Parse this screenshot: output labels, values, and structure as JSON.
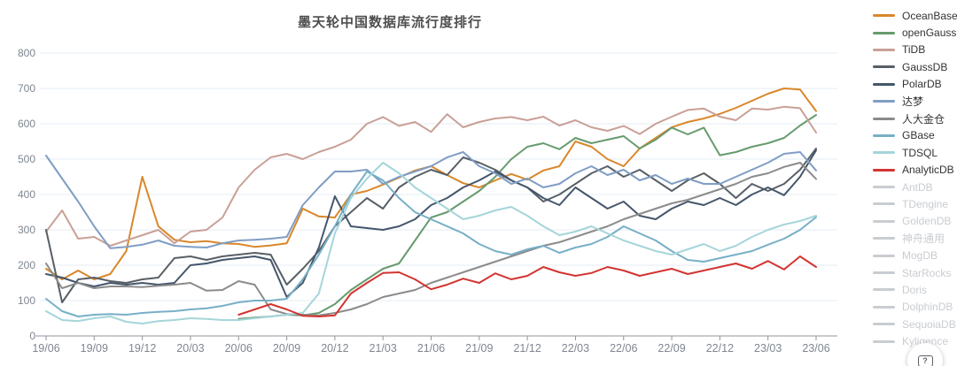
{
  "title": "墨天轮中国数据库流行度排行",
  "help_button": {
    "icon": "help-shortcut-icon",
    "glyph": "?"
  },
  "axis_colors": {
    "grid": "#e6ecf5",
    "axis_line": "#8f959e",
    "tick_label": "#7f8691"
  },
  "chart_data": {
    "type": "line",
    "title": "墨天轮中国数据库流行度排行",
    "xlabel": "",
    "ylabel": "",
    "ylim": [
      0,
      800
    ],
    "y_ticks": [
      0,
      100,
      200,
      300,
      400,
      500,
      600,
      700,
      800
    ],
    "grid": true,
    "legend_position": "right",
    "x_tick_labels": [
      "19/06",
      "19/09",
      "19/12",
      "20/03",
      "20/06",
      "20/09",
      "20/12",
      "21/03",
      "21/06",
      "21/09",
      "21/12",
      "22/03",
      "22/06",
      "22/09",
      "22/12",
      "23/03",
      "23/06"
    ],
    "x": [
      "19/06",
      "19/07",
      "19/08",
      "19/09",
      "19/10",
      "19/11",
      "19/12",
      "20/01",
      "20/02",
      "20/03",
      "20/04",
      "20/05",
      "20/06",
      "20/07",
      "20/08",
      "20/09",
      "20/10",
      "20/11",
      "20/12",
      "21/01",
      "21/02",
      "21/03",
      "21/04",
      "21/05",
      "21/06",
      "21/07",
      "21/08",
      "21/09",
      "21/10",
      "21/11",
      "21/12",
      "22/01",
      "22/02",
      "22/03",
      "22/04",
      "22/05",
      "22/06",
      "22/07",
      "22/08",
      "22/09",
      "22/10",
      "22/11",
      "22/12",
      "23/01",
      "23/02",
      "23/03",
      "23/04",
      "23/05",
      "23/06"
    ],
    "series": [
      {
        "name": "OceanBase",
        "color": "#d9872a",
        "enabled": true,
        "values": [
          190,
          160,
          185,
          160,
          175,
          240,
          450,
          310,
          272,
          265,
          268,
          262,
          260,
          252,
          256,
          262,
          360,
          338,
          335,
          400,
          410,
          428,
          448,
          468,
          480,
          455,
          432,
          420,
          440,
          458,
          442,
          468,
          480,
          550,
          535,
          500,
          480,
          530,
          560,
          590,
          605,
          615,
          628,
          645,
          665,
          685,
          700,
          697,
          636
        ]
      },
      {
        "name": "openGauss",
        "color": "#679b6e",
        "enabled": true,
        "values": [
          null,
          null,
          null,
          null,
          null,
          null,
          null,
          null,
          null,
          null,
          null,
          null,
          48,
          52,
          55,
          60,
          58,
          65,
          90,
          130,
          160,
          190,
          205,
          270,
          335,
          350,
          380,
          410,
          450,
          500,
          535,
          545,
          528,
          560,
          545,
          555,
          565,
          530,
          555,
          589,
          570,
          589,
          511,
          520,
          535,
          545,
          560,
          595,
          625
        ]
      },
      {
        "name": "TiDB",
        "color": "#c9a096",
        "enabled": true,
        "values": [
          295,
          355,
          275,
          280,
          255,
          270,
          285,
          300,
          262,
          295,
          300,
          335,
          420,
          470,
          505,
          515,
          500,
          520,
          535,
          555,
          600,
          619,
          594,
          605,
          577,
          627,
          590,
          605,
          615,
          619,
          610,
          620,
          595,
          610,
          590,
          580,
          594,
          571,
          600,
          620,
          639,
          643,
          620,
          610,
          643,
          640,
          648,
          644,
          575
        ]
      },
      {
        "name": "GaussDB",
        "color": "#585f66",
        "enabled": true,
        "values": [
          300,
          95,
          160,
          165,
          155,
          150,
          160,
          165,
          220,
          225,
          215,
          225,
          230,
          235,
          230,
          145,
          190,
          240,
          310,
          350,
          390,
          360,
          420,
          450,
          470,
          455,
          505,
          490,
          470,
          440,
          420,
          380,
          400,
          430,
          460,
          480,
          450,
          470,
          440,
          410,
          440,
          460,
          430,
          390,
          430,
          410,
          430,
          470,
          530
        ]
      },
      {
        "name": "PolarDB",
        "color": "#44566b",
        "enabled": true,
        "values": [
          175,
          165,
          150,
          140,
          150,
          145,
          150,
          145,
          150,
          200,
          205,
          215,
          220,
          225,
          215,
          110,
          150,
          250,
          395,
          310,
          305,
          300,
          310,
          330,
          370,
          390,
          420,
          440,
          465,
          440,
          420,
          390,
          370,
          420,
          390,
          360,
          380,
          340,
          330,
          360,
          380,
          370,
          390,
          370,
          400,
          420,
          398,
          450,
          525
        ]
      },
      {
        "name": "达梦",
        "color": "#7f9dc4",
        "enabled": true,
        "values": [
          510,
          445,
          380,
          310,
          248,
          252,
          258,
          270,
          255,
          252,
          250,
          262,
          270,
          272,
          275,
          280,
          370,
          420,
          465,
          465,
          470,
          430,
          450,
          465,
          480,
          505,
          520,
          480,
          460,
          430,
          445,
          420,
          430,
          460,
          480,
          455,
          470,
          440,
          455,
          430,
          445,
          430,
          430,
          450,
          470,
          490,
          515,
          520,
          468
        ]
      },
      {
        "name": "人大金仓",
        "color": "#8b8b8b",
        "enabled": true,
        "values": [
          205,
          135,
          150,
          135,
          140,
          140,
          138,
          142,
          145,
          150,
          128,
          130,
          155,
          145,
          75,
          62,
          60,
          58,
          65,
          75,
          90,
          110,
          120,
          130,
          150,
          165,
          180,
          195,
          210,
          225,
          240,
          255,
          265,
          280,
          295,
          310,
          330,
          345,
          360,
          375,
          385,
          400,
          415,
          430,
          450,
          460,
          478,
          490,
          444
        ]
      },
      {
        "name": "GBase",
        "color": "#77afc7",
        "enabled": true,
        "values": [
          105,
          70,
          55,
          60,
          62,
          60,
          65,
          68,
          70,
          75,
          78,
          85,
          95,
          100,
          100,
          105,
          160,
          230,
          310,
          400,
          465,
          440,
          390,
          350,
          330,
          310,
          290,
          260,
          240,
          230,
          245,
          255,
          235,
          250,
          260,
          280,
          310,
          290,
          270,
          240,
          215,
          210,
          220,
          230,
          240,
          258,
          275,
          300,
          336
        ]
      },
      {
        "name": "TDSQL",
        "color": "#a5d5da",
        "enabled": true,
        "values": [
          70,
          45,
          42,
          50,
          55,
          40,
          35,
          42,
          45,
          50,
          48,
          45,
          45,
          50,
          55,
          60,
          65,
          120,
          290,
          390,
          445,
          490,
          460,
          420,
          390,
          360,
          330,
          340,
          355,
          365,
          340,
          310,
          285,
          295,
          310,
          290,
          270,
          255,
          240,
          230,
          245,
          260,
          240,
          255,
          280,
          300,
          315,
          325,
          340
        ]
      },
      {
        "name": "AnalyticDB",
        "color": "#d33430",
        "enabled": true,
        "values": [
          null,
          null,
          null,
          null,
          null,
          null,
          null,
          null,
          null,
          null,
          null,
          null,
          60,
          75,
          90,
          75,
          57,
          55,
          58,
          120,
          150,
          178,
          180,
          160,
          132,
          145,
          162,
          150,
          177,
          160,
          170,
          195,
          180,
          170,
          178,
          195,
          185,
          170,
          180,
          190,
          175,
          185,
          195,
          205,
          190,
          212,
          188,
          225,
          195
        ]
      },
      {
        "name": "AntDB",
        "color": "#c9ccd1",
        "enabled": false,
        "values": []
      },
      {
        "name": "TDengine",
        "color": "#c9ccd1",
        "enabled": false,
        "values": []
      },
      {
        "name": "GoldenDB",
        "color": "#c9ccd1",
        "enabled": false,
        "values": []
      },
      {
        "name": "神舟通用",
        "color": "#c9ccd1",
        "enabled": false,
        "values": []
      },
      {
        "name": "MogDB",
        "color": "#c9ccd1",
        "enabled": false,
        "values": []
      },
      {
        "name": "StarRocks",
        "color": "#c9ccd1",
        "enabled": false,
        "values": []
      },
      {
        "name": "Doris",
        "color": "#c9ccd1",
        "enabled": false,
        "values": []
      },
      {
        "name": "DolphinDB",
        "color": "#c9ccd1",
        "enabled": false,
        "values": []
      },
      {
        "name": "SequoiaDB",
        "color": "#c9ccd1",
        "enabled": false,
        "values": []
      },
      {
        "name": "Kyligence",
        "color": "#c9ccd1",
        "enabled": false,
        "values": []
      }
    ]
  }
}
